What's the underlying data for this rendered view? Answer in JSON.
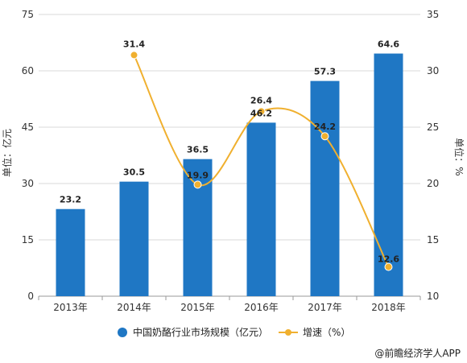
{
  "chart_data": {
    "type": "bar",
    "categories": [
      "2013年",
      "2014年",
      "2015年",
      "2016年",
      "2017年",
      "2018年"
    ],
    "series": [
      {
        "name": "中国奶酪行业市场规模（亿元）",
        "type": "bar",
        "axis": "left",
        "color": "#1F77C4",
        "values": [
          23.2,
          30.5,
          36.5,
          46.2,
          57.3,
          64.6
        ],
        "value_labels": [
          "23.2",
          "30.5",
          "36.5",
          "46.2",
          "57.3",
          "64.6"
        ]
      },
      {
        "name": "增速（%）",
        "type": "line",
        "axis": "right",
        "color": "#F0B02F",
        "smooth": true,
        "values": [
          null,
          31.4,
          19.9,
          26.4,
          24.2,
          12.6
        ],
        "value_labels": [
          "",
          "31.4",
          "19.9",
          "26.4",
          "24.2",
          "12.6"
        ]
      }
    ],
    "ylabel_left": "单位：亿元",
    "ylabel_right": "单位：%",
    "ylim_left": [
      0,
      75
    ],
    "ylim_right": [
      10,
      35
    ],
    "yticks_left": [
      "0",
      "15",
      "30",
      "45",
      "60",
      "75"
    ],
    "yticks_right": [
      "10",
      "15",
      "20",
      "25",
      "30",
      "35"
    ],
    "grid": true,
    "legend_position": "bottom"
  },
  "credit": "@前瞻经济学人APP"
}
